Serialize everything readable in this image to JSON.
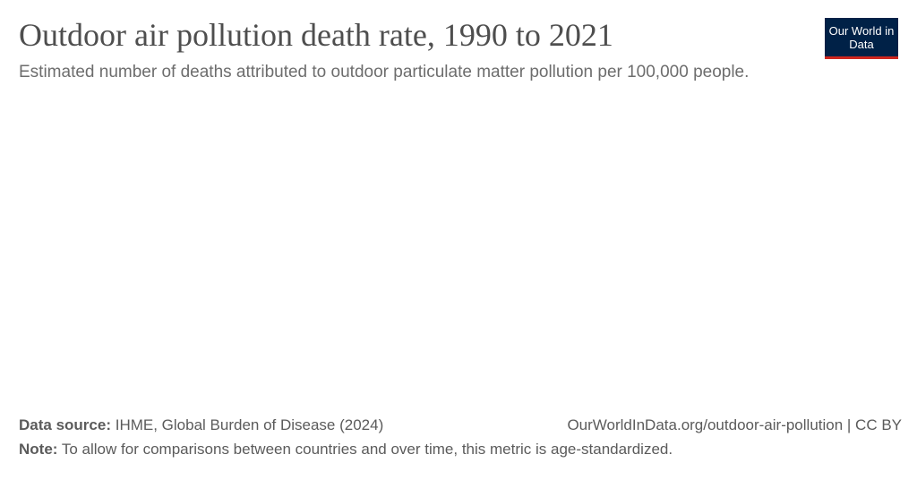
{
  "chart_data": {
    "type": "line",
    "title": "Outdoor air pollution death rate, 1990 to 2021",
    "subtitle": "Estimated number of deaths attributed to outdoor particulate matter pollution per 100,000 people.",
    "logo": "Our World in Data",
    "source_label": "Data source:",
    "source": "IHME, Global Burden of Disease (2024)",
    "url": "OurWorldInData.org/outdoor-air-pollution | CC BY",
    "note_label": "Note:",
    "note": "To allow for comparisons between countries and over time, this metric is age-standardized."
  }
}
